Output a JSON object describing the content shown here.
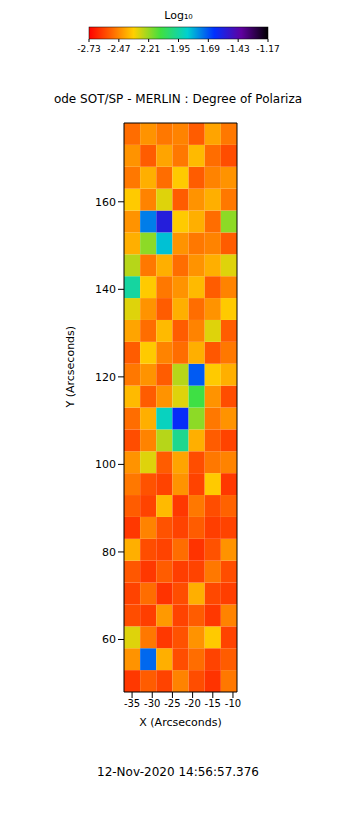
{
  "chart_data": {
    "type": "heatmap",
    "title": "ode SOT/SP - MERLIN : Degree of Polariza",
    "x_label": "X (Arcseconds)",
    "y_label": "Y (Arcseconds)",
    "xlim": [
      -37,
      -9
    ],
    "xticks": [
      -35,
      -30,
      -25,
      -20,
      -15,
      -10
    ],
    "ylim": [
      48,
      178
    ],
    "yticks": [
      60,
      80,
      100,
      120,
      140,
      160
    ],
    "x_bins": [
      -37,
      -33,
      -29,
      -25,
      -21,
      -17,
      -13,
      -9
    ],
    "y_bins": [
      48,
      53,
      58,
      63,
      68,
      73,
      78,
      83,
      88,
      93,
      98,
      103,
      108,
      113,
      118,
      123,
      128,
      133,
      138,
      143,
      148,
      153,
      158,
      163,
      168,
      173,
      178
    ],
    "cells": [
      [
        -2.62,
        -2.55,
        -2.6,
        -2.48,
        -2.58,
        -2.63,
        -2.5
      ],
      [
        -2.45,
        -1.72,
        -2.4,
        -2.58,
        -2.52,
        -2.6,
        -2.55
      ],
      [
        -2.3,
        -2.5,
        -2.62,
        -2.57,
        -2.45,
        -2.35,
        -2.6
      ],
      [
        -2.58,
        -2.61,
        -2.44,
        -2.6,
        -2.55,
        -2.62,
        -2.48
      ],
      [
        -2.6,
        -2.52,
        -2.63,
        -2.58,
        -2.4,
        -2.59,
        -2.61
      ],
      [
        -2.56,
        -2.62,
        -2.55,
        -2.61,
        -2.6,
        -2.5,
        -2.58
      ],
      [
        -2.4,
        -2.58,
        -2.6,
        -2.52,
        -2.63,
        -2.57,
        -2.45
      ],
      [
        -2.62,
        -2.48,
        -2.57,
        -2.6,
        -2.55,
        -2.61,
        -2.6
      ],
      [
        -2.55,
        -2.6,
        -2.38,
        -2.62,
        -2.5,
        -2.58,
        -2.54
      ],
      [
        -2.5,
        -2.57,
        -2.6,
        -2.45,
        -2.6,
        -2.35,
        -2.62
      ],
      [
        -2.45,
        -2.3,
        -2.55,
        -2.42,
        -2.58,
        -2.5,
        -2.48
      ],
      [
        -2.58,
        -2.48,
        -2.25,
        -1.98,
        -2.4,
        -2.55,
        -2.6
      ],
      [
        -2.52,
        -2.4,
        -1.9,
        -1.62,
        -2.2,
        -2.5,
        -2.45
      ],
      [
        -2.38,
        -2.55,
        -2.45,
        -2.3,
        -2.1,
        -2.45,
        -2.58
      ],
      [
        -2.5,
        -2.45,
        -2.55,
        -2.25,
        -1.7,
        -2.35,
        -2.4
      ],
      [
        -2.55,
        -2.35,
        -2.48,
        -2.52,
        -2.4,
        -2.56,
        -2.5
      ],
      [
        -2.42,
        -2.52,
        -2.38,
        -2.55,
        -2.48,
        -2.3,
        -2.55
      ],
      [
        -2.3,
        -2.45,
        -2.55,
        -2.4,
        -2.52,
        -2.45,
        -2.35
      ],
      [
        -1.95,
        -2.35,
        -2.5,
        -2.45,
        -2.38,
        -2.55,
        -2.48
      ],
      [
        -2.25,
        -2.5,
        -2.4,
        -2.52,
        -2.45,
        -2.4,
        -2.3
      ],
      [
        -2.4,
        -2.2,
        -1.85,
        -2.45,
        -2.5,
        -2.48,
        -2.55
      ],
      [
        -2.45,
        -1.75,
        -1.55,
        -2.35,
        -2.4,
        -2.52,
        -2.2
      ],
      [
        -2.35,
        -2.48,
        -2.3,
        -2.55,
        -2.45,
        -2.4,
        -2.5
      ],
      [
        -2.5,
        -2.4,
        -2.52,
        -2.35,
        -2.55,
        -2.48,
        -2.45
      ],
      [
        -2.45,
        -2.55,
        -2.42,
        -2.5,
        -2.38,
        -2.52,
        -2.58
      ],
      [
        -2.52,
        -2.45,
        -2.5,
        -2.48,
        -2.55,
        -2.42,
        -2.5
      ]
    ],
    "colorbar": {
      "label": "Log₁₀",
      "range": [
        -2.73,
        -1.17
      ],
      "ticks": [
        -2.73,
        -2.47,
        -2.21,
        -1.95,
        -1.69,
        -1.43,
        -1.17
      ]
    },
    "annotation": "12-Nov-2020 14:56:57.376"
  }
}
